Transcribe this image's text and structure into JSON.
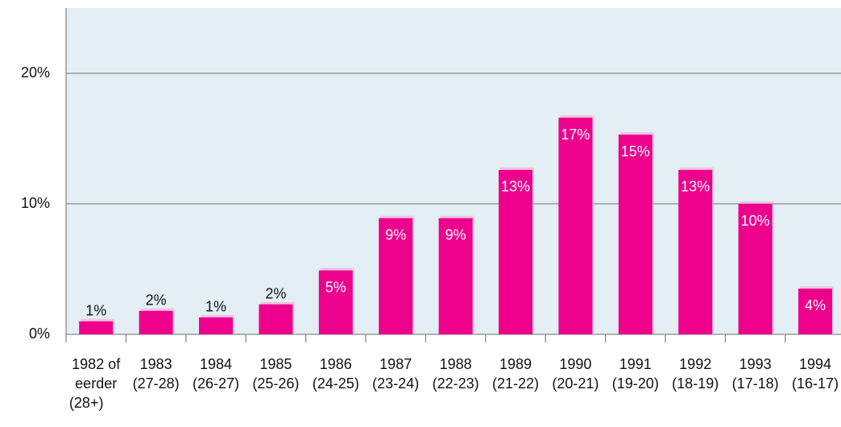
{
  "chart_data": {
    "type": "bar",
    "categories": [
      [
        "1982 of",
        "eerder",
        "(28+)"
      ],
      [
        "1983",
        "(27-28)"
      ],
      [
        "1984",
        "(26-27)"
      ],
      [
        "1985",
        "(25-26)"
      ],
      [
        "1986",
        "(24-25)"
      ],
      [
        "1987",
        "(23-24)"
      ],
      [
        "1988",
        "(22-23)"
      ],
      [
        "1989",
        "(21-22)"
      ],
      [
        "1990",
        "(20-21)"
      ],
      [
        "1991",
        "(19-20)"
      ],
      [
        "1992",
        "(18-19)"
      ],
      [
        "1993",
        "(17-18)"
      ],
      [
        "1994",
        "(16-17)"
      ]
    ],
    "values": [
      1.0,
      1.8,
      1.3,
      2.3,
      4.9,
      8.9,
      8.9,
      12.6,
      16.6,
      15.3,
      12.6,
      10.0,
      3.5
    ],
    "value_labels": [
      "1%",
      "2%",
      "1%",
      "2%",
      "5%",
      "9%",
      "9%",
      "13%",
      "17%",
      "15%",
      "13%",
      "10%",
      "4%"
    ],
    "color": "#ec008c",
    "ylim": [
      0,
      25
    ],
    "yticks": [
      {
        "value": 0,
        "label": "0%"
      },
      {
        "value": 10,
        "label": "10%"
      },
      {
        "value": 20,
        "label": "20%"
      }
    ],
    "grid": true
  }
}
